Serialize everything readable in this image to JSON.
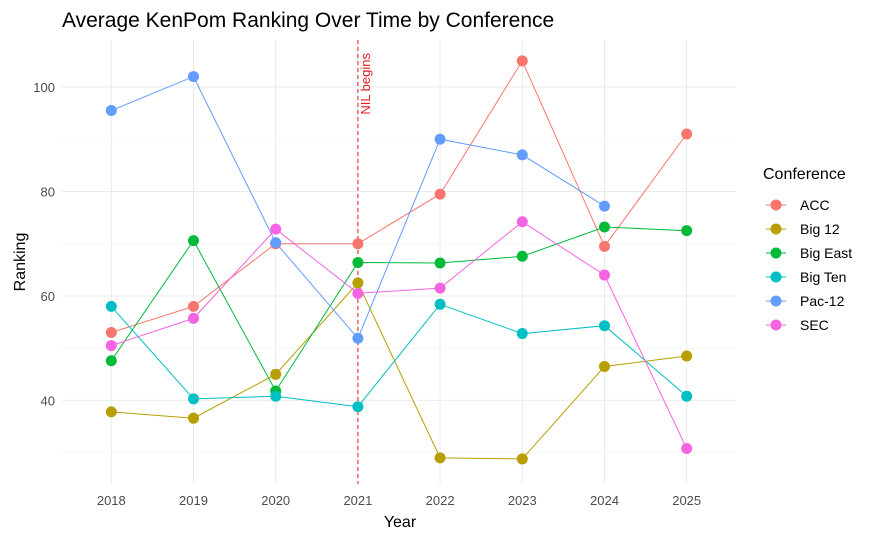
{
  "chart_data": {
    "type": "line",
    "title": "Average KenPom Ranking Over Time by Conference",
    "xlabel": "Year",
    "ylabel": "Ranking",
    "x": [
      2018,
      2019,
      2020,
      2021,
      2022,
      2023,
      2024,
      2025
    ],
    "x_tick_labels": [
      "2018",
      "2019",
      "2020",
      "2021",
      "2022",
      "2023",
      "2024",
      "2025"
    ],
    "y_ticks": [
      40,
      60,
      80,
      100
    ],
    "y_tick_labels": [
      "40",
      "60",
      "80",
      "100"
    ],
    "xlim": [
      2017.4,
      2025.6
    ],
    "ylim": [
      24,
      109
    ],
    "grid": true,
    "legend": {
      "title": "Conference",
      "position": "right"
    },
    "annotation": {
      "text": "NIL begins",
      "x": 2021,
      "color": "#e41a1c"
    },
    "series": [
      {
        "name": "ACC",
        "color": "#F8766D",
        "values": [
          53.0,
          58.0,
          70.0,
          70.0,
          79.5,
          105.0,
          69.5,
          91.0
        ]
      },
      {
        "name": "Big 12",
        "color": "#B79F00",
        "values": [
          37.8,
          36.6,
          45.0,
          62.5,
          29.0,
          28.8,
          46.5,
          48.5
        ]
      },
      {
        "name": "Big East",
        "color": "#00BA38",
        "values": [
          47.6,
          70.6,
          41.8,
          66.4,
          66.3,
          67.6,
          73.2,
          72.5
        ]
      },
      {
        "name": "Big Ten",
        "color": "#00BFC4",
        "values": [
          58.0,
          40.3,
          40.8,
          38.8,
          58.4,
          52.8,
          54.3,
          40.8
        ]
      },
      {
        "name": "Pac-12",
        "color": "#619CFF",
        "values": [
          95.5,
          102.0,
          70.2,
          51.9,
          90.0,
          87.0,
          77.2,
          null
        ]
      },
      {
        "name": "SEC",
        "color": "#F564E3",
        "values": [
          50.5,
          55.7,
          72.8,
          60.5,
          61.5,
          74.2,
          64.0,
          30.8
        ]
      }
    ]
  }
}
